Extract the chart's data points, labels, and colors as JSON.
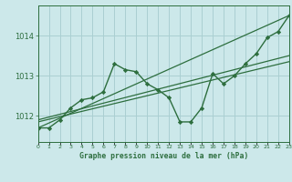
{
  "xlabel": "Graphe pression niveau de la mer (hPa)",
  "bg_color": "#cce8ea",
  "grid_color": "#aacfd2",
  "line_color": "#2d6e3e",
  "marker_color": "#2d6e3e",
  "x": [
    0,
    1,
    2,
    3,
    4,
    5,
    6,
    7,
    8,
    9,
    10,
    11,
    12,
    13,
    14,
    15,
    16,
    17,
    18,
    19,
    20,
    21,
    22,
    23
  ],
  "y": [
    1011.7,
    1011.7,
    1011.9,
    1012.2,
    1012.4,
    1012.45,
    1012.6,
    1013.3,
    1013.15,
    1013.1,
    1012.8,
    1012.65,
    1012.45,
    1011.85,
    1011.85,
    1012.2,
    1013.05,
    1012.8,
    1013.0,
    1013.3,
    1013.55,
    1013.95,
    1014.1,
    1014.5
  ],
  "yticks": [
    1012,
    1013,
    1014
  ],
  "ylim": [
    1011.35,
    1014.75
  ],
  "xlim": [
    0,
    23
  ],
  "trend_line1": [
    [
      0,
      1011.7
    ],
    [
      23,
      1014.5
    ]
  ],
  "trend_line2": [
    [
      0,
      1011.85
    ],
    [
      23,
      1013.35
    ]
  ],
  "trend_line3": [
    [
      0,
      1011.9
    ],
    [
      23,
      1013.5
    ]
  ]
}
